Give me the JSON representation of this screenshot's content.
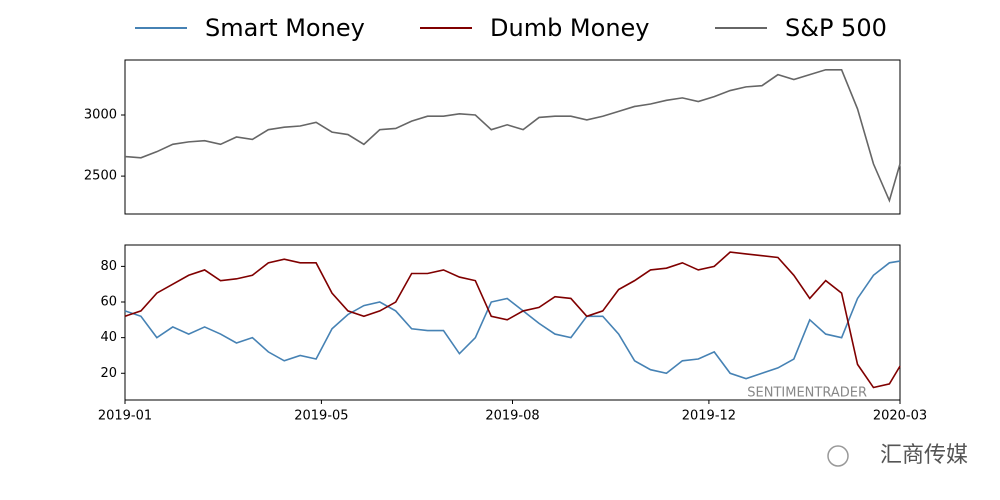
{
  "chart_data": [
    {
      "type": "line",
      "x": [
        0,
        6,
        12,
        18,
        24,
        30,
        36,
        42,
        48,
        54,
        60,
        66,
        72,
        78,
        84,
        90,
        96,
        102,
        108,
        114,
        120,
        126,
        132,
        138,
        144,
        150,
        156,
        162,
        168,
        174,
        180,
        186,
        192,
        198,
        204,
        210,
        216,
        222,
        228,
        234,
        240,
        246,
        252,
        258,
        264,
        270,
        276,
        282,
        288,
        292
      ],
      "xlim": [
        0,
        292
      ],
      "ylim": [
        2190,
        3450
      ],
      "yticks": [
        2500,
        3000
      ],
      "series": [
        {
          "name": "S&P 500",
          "color": "#666666",
          "values": [
            2660,
            2650,
            2700,
            2760,
            2780,
            2790,
            2760,
            2820,
            2800,
            2880,
            2900,
            2910,
            2940,
            2860,
            2840,
            2760,
            2880,
            2890,
            2950,
            2990,
            2990,
            3010,
            3000,
            2880,
            2920,
            2880,
            2980,
            2990,
            2990,
            2960,
            2990,
            3030,
            3070,
            3090,
            3120,
            3140,
            3110,
            3150,
            3200,
            3230,
            3240,
            3330,
            3290,
            3330,
            3370,
            3370,
            3050,
            2600,
            2300,
            2600
          ]
        }
      ]
    },
    {
      "type": "line",
      "x": [
        0,
        6,
        12,
        18,
        24,
        30,
        36,
        42,
        48,
        54,
        60,
        66,
        72,
        78,
        84,
        90,
        96,
        102,
        108,
        114,
        120,
        126,
        132,
        138,
        144,
        150,
        156,
        162,
        168,
        174,
        180,
        186,
        192,
        198,
        204,
        210,
        216,
        222,
        228,
        234,
        240,
        246,
        252,
        258,
        264,
        270,
        276,
        282,
        288,
        292
      ],
      "xlim": [
        0,
        292
      ],
      "xticks": [
        {
          "value": 0,
          "label": "2019-01"
        },
        {
          "value": 74,
          "label": "2019-05"
        },
        {
          "value": 146,
          "label": "2019-08"
        },
        {
          "value": 220,
          "label": "2019-12"
        },
        {
          "value": 292,
          "label": "2020-03"
        }
      ],
      "ylim": [
        5,
        92
      ],
      "yticks": [
        20,
        40,
        60,
        80
      ],
      "watermark": "SENTIMENTRADER",
      "series": [
        {
          "name": "Smart Money",
          "color": "#4682b4",
          "values": [
            55,
            52,
            40,
            46,
            42,
            46,
            42,
            37,
            40,
            32,
            27,
            30,
            28,
            45,
            53,
            58,
            60,
            55,
            45,
            44,
            44,
            31,
            40,
            60,
            62,
            55,
            48,
            42,
            40,
            52,
            52,
            42,
            27,
            22,
            20,
            27,
            28,
            32,
            20,
            17,
            20,
            23,
            28,
            50,
            42,
            40,
            62,
            75,
            82,
            83
          ]
        },
        {
          "name": "Dumb Money",
          "color": "#800000",
          "values": [
            52,
            55,
            65,
            70,
            75,
            78,
            72,
            73,
            75,
            82,
            84,
            82,
            82,
            65,
            55,
            52,
            55,
            60,
            76,
            76,
            78,
            74,
            72,
            52,
            50,
            55,
            57,
            63,
            62,
            52,
            55,
            67,
            72,
            78,
            79,
            82,
            78,
            80,
            88,
            87,
            86,
            85,
            75,
            62,
            72,
            65,
            25,
            12,
            14,
            24
          ]
        }
      ]
    }
  ],
  "logo": "汇商传媒"
}
